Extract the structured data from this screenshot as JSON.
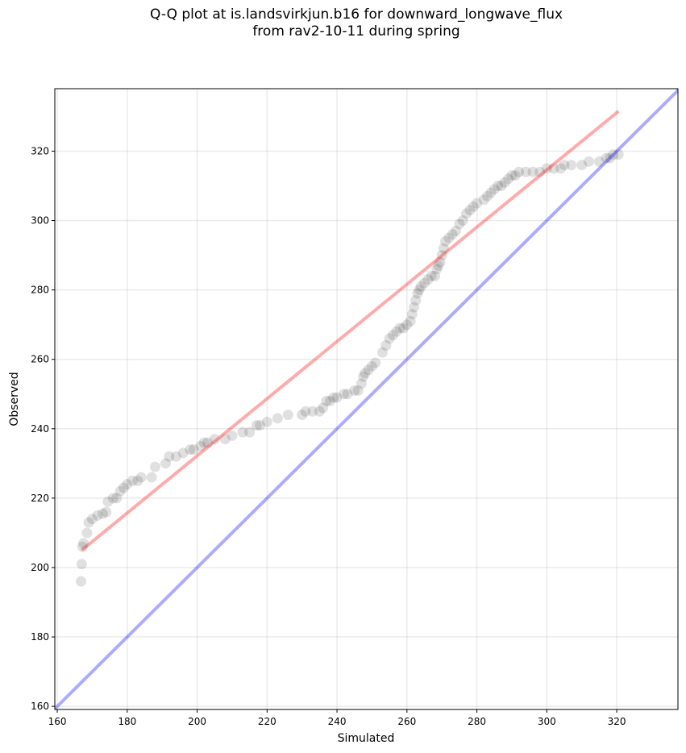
{
  "chart_data": {
    "type": "scatter",
    "title_line1": "Q-Q plot at is.landsvirkjun.b16 for downward_longwave_flux",
    "title_line2": "from rav2-10-11 during spring",
    "xlabel": "Simulated",
    "ylabel": "Observed",
    "xlim": [
      159.3,
      337.5
    ],
    "ylim": [
      159.1,
      338.0
    ],
    "xticks": [
      160,
      180,
      200,
      220,
      240,
      260,
      280,
      300,
      320
    ],
    "yticks": [
      160,
      180,
      200,
      220,
      240,
      260,
      280,
      300,
      320
    ],
    "grid": true,
    "point_color": "#000000",
    "point_alpha": 0.12,
    "fit_line": {
      "color": "#ff0000",
      "alpha": 0.33,
      "x": [
        167,
        320.5
      ],
      "y": [
        205,
        331.5
      ]
    },
    "identity_line": {
      "color": "#0000ff",
      "alpha": 0.33
    },
    "points": [
      [
        166.8,
        196
      ],
      [
        167,
        201
      ],
      [
        167.2,
        206
      ],
      [
        167.5,
        207
      ],
      [
        168.5,
        210
      ],
      [
        169,
        213
      ],
      [
        170,
        214
      ],
      [
        171.5,
        215
      ],
      [
        173,
        215.5
      ],
      [
        174,
        216
      ],
      [
        174.5,
        219
      ],
      [
        176,
        220
      ],
      [
        177,
        220
      ],
      [
        178,
        222
      ],
      [
        179,
        223
      ],
      [
        180,
        224
      ],
      [
        181.5,
        225
      ],
      [
        183,
        225
      ],
      [
        184,
        226
      ],
      [
        187,
        226
      ],
      [
        188,
        229
      ],
      [
        191,
        230
      ],
      [
        192,
        232
      ],
      [
        194,
        232
      ],
      [
        196,
        233
      ],
      [
        198,
        234
      ],
      [
        199,
        234
      ],
      [
        201,
        235
      ],
      [
        202,
        236
      ],
      [
        203,
        236
      ],
      [
        205,
        237
      ],
      [
        208,
        237
      ],
      [
        210,
        238
      ],
      [
        213,
        239
      ],
      [
        215,
        239
      ],
      [
        217,
        241
      ],
      [
        218,
        241
      ],
      [
        220,
        242
      ],
      [
        223,
        243
      ],
      [
        226,
        244
      ],
      [
        230,
        244
      ],
      [
        231,
        245
      ],
      [
        233,
        245
      ],
      [
        235,
        245
      ],
      [
        236,
        246
      ],
      [
        237,
        248
      ],
      [
        238,
        248
      ],
      [
        239,
        249
      ],
      [
        240,
        249
      ],
      [
        242,
        250
      ],
      [
        243,
        250
      ],
      [
        245,
        251
      ],
      [
        246,
        251
      ],
      [
        247,
        253
      ],
      [
        247.5,
        255
      ],
      [
        248,
        256
      ],
      [
        249,
        257
      ],
      [
        250,
        258
      ],
      [
        251,
        259
      ],
      [
        253,
        262
      ],
      [
        254,
        264
      ],
      [
        255,
        266
      ],
      [
        256,
        267
      ],
      [
        257,
        268
      ],
      [
        258,
        269
      ],
      [
        259,
        269
      ],
      [
        260,
        270
      ],
      [
        261,
        271
      ],
      [
        261.5,
        273
      ],
      [
        262,
        275
      ],
      [
        262.5,
        277
      ],
      [
        263,
        279
      ],
      [
        263.5,
        280
      ],
      [
        264,
        281
      ],
      [
        265,
        282
      ],
      [
        266,
        283
      ],
      [
        267,
        284
      ],
      [
        268,
        284
      ],
      [
        268.5,
        286
      ],
      [
        269,
        287
      ],
      [
        269.5,
        288
      ],
      [
        270,
        290
      ],
      [
        270.5,
        292
      ],
      [
        271,
        294
      ],
      [
        272,
        295
      ],
      [
        273,
        296
      ],
      [
        274,
        297
      ],
      [
        275,
        299
      ],
      [
        276,
        300
      ],
      [
        277,
        302
      ],
      [
        278,
        303
      ],
      [
        279,
        304
      ],
      [
        280,
        305
      ],
      [
        282,
        306
      ],
      [
        283,
        307
      ],
      [
        284,
        308
      ],
      [
        285,
        309
      ],
      [
        286,
        310
      ],
      [
        287,
        310
      ],
      [
        288,
        311
      ],
      [
        289,
        312
      ],
      [
        290,
        313
      ],
      [
        291,
        313
      ],
      [
        292,
        314
      ],
      [
        294,
        314
      ],
      [
        296,
        314
      ],
      [
        298,
        314
      ],
      [
        300,
        315
      ],
      [
        302,
        315
      ],
      [
        304,
        315
      ],
      [
        305,
        316
      ],
      [
        307,
        316
      ],
      [
        310,
        316
      ],
      [
        312,
        317
      ],
      [
        315,
        317
      ],
      [
        317,
        318
      ],
      [
        318,
        318
      ],
      [
        319,
        319
      ],
      [
        320.5,
        319
      ]
    ]
  }
}
